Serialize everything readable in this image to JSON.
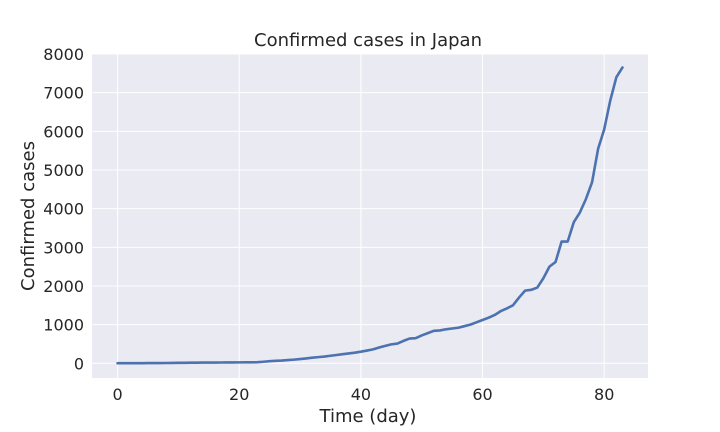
{
  "chart_data": {
    "type": "line",
    "title": "Confirmed cases in Japan",
    "xlabel": "Time (day)",
    "ylabel": "Confirmed cases",
    "xlim": [
      -4.2,
      87.2
    ],
    "ylim": [
      -380,
      8000
    ],
    "x_ticks": [
      0,
      20,
      40,
      60,
      80
    ],
    "y_ticks": [
      0,
      1000,
      2000,
      3000,
      4000,
      5000,
      6000,
      7000,
      8000
    ],
    "grid": true,
    "legend": "none",
    "style": {
      "line_color": "#4c72b0",
      "axes_background": "#eaeaf2",
      "grid_color": "#ffffff",
      "text_color": "#262626"
    },
    "series": [
      {
        "x": [
          0,
          1,
          2,
          3,
          4,
          5,
          6,
          7,
          8,
          9,
          10,
          11,
          12,
          13,
          14,
          15,
          16,
          17,
          18,
          19,
          20,
          21,
          22,
          23,
          24,
          25,
          26,
          27,
          28,
          29,
          30,
          31,
          32,
          33,
          34,
          35,
          36,
          37,
          38,
          39,
          40,
          41,
          42,
          43,
          44,
          45,
          46,
          47,
          48,
          49,
          50,
          51,
          52,
          53,
          54,
          55,
          56,
          57,
          58,
          59,
          60,
          61,
          62,
          63,
          64,
          65,
          66,
          67,
          68,
          69,
          70,
          71,
          72,
          73,
          74,
          75,
          76,
          77,
          78,
          79,
          80,
          81,
          82,
          83
        ],
        "values": [
          2,
          2,
          3,
          3,
          4,
          5,
          6,
          7,
          8,
          10,
          12,
          14,
          16,
          17,
          18,
          19,
          20,
          21,
          22,
          23,
          24,
          25,
          26,
          28,
          40,
          55,
          65,
          72,
          85,
          95,
          110,
          125,
          145,
          160,
          175,
          195,
          215,
          235,
          255,
          275,
          300,
          330,
          360,
          410,
          450,
          490,
          510,
          580,
          640,
          650,
          720,
          780,
          840,
          850,
          880,
          900,
          920,
          960,
          1000,
          1060,
          1120,
          1180,
          1250,
          1350,
          1420,
          1500,
          1700,
          1880,
          1900,
          1960,
          2200,
          2500,
          2620,
          3150,
          3150,
          3650,
          3900,
          4250,
          4680,
          5550,
          6050,
          6800,
          7400,
          7650
        ]
      }
    ]
  }
}
